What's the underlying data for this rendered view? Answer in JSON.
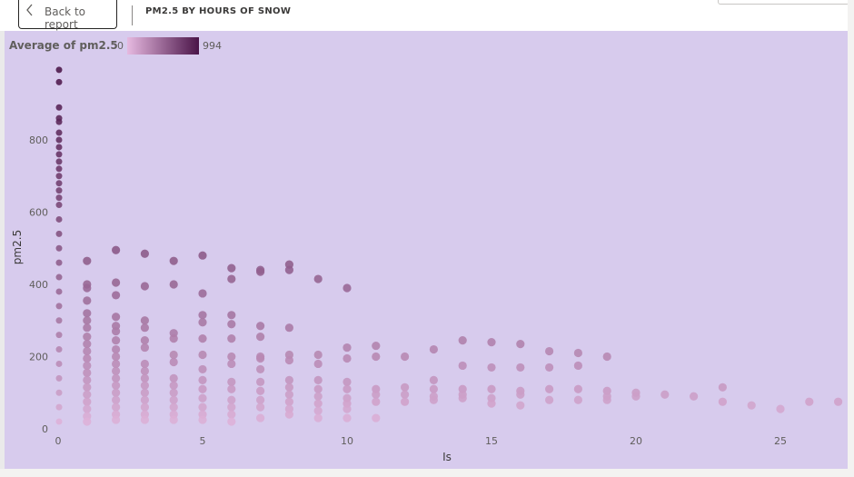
{
  "header": {
    "back_label": "Back to report",
    "title": "PM2.5 BY HOURS OF SNOW"
  },
  "legend": {
    "title": "Average of pm2.5",
    "min": "0",
    "max": "994",
    "color_low": "#e6b9e0",
    "color_high": "#4a1448"
  },
  "chart_data": {
    "type": "scatter",
    "title": "PM2.5 BY HOURS OF SNOW",
    "xlabel": "Is",
    "ylabel": "pm2.5",
    "xlim": [
      0,
      27
    ],
    "ylim": [
      0,
      994
    ],
    "x_ticks": [
      0,
      5,
      10,
      15,
      20,
      25
    ],
    "y_ticks": [
      0,
      200,
      400,
      600,
      800
    ],
    "grid": false,
    "color_by": "Average of pm2.5",
    "color_range": [
      0,
      994
    ],
    "points": [
      {
        "x": 0,
        "y": 994
      },
      {
        "x": 0,
        "y": 960
      },
      {
        "x": 0,
        "y": 890
      },
      {
        "x": 0,
        "y": 860
      },
      {
        "x": 0,
        "y": 850
      },
      {
        "x": 0,
        "y": 820
      },
      {
        "x": 0,
        "y": 800
      },
      {
        "x": 0,
        "y": 780
      },
      {
        "x": 0,
        "y": 760
      },
      {
        "x": 0,
        "y": 740
      },
      {
        "x": 0,
        "y": 720
      },
      {
        "x": 0,
        "y": 700
      },
      {
        "x": 0,
        "y": 680
      },
      {
        "x": 0,
        "y": 660
      },
      {
        "x": 0,
        "y": 640
      },
      {
        "x": 0,
        "y": 620
      },
      {
        "x": 0,
        "y": 580
      },
      {
        "x": 0,
        "y": 540
      },
      {
        "x": 0,
        "y": 500
      },
      {
        "x": 0,
        "y": 460
      },
      {
        "x": 0,
        "y": 420
      },
      {
        "x": 0,
        "y": 380
      },
      {
        "x": 0,
        "y": 340
      },
      {
        "x": 0,
        "y": 300
      },
      {
        "x": 0,
        "y": 260
      },
      {
        "x": 0,
        "y": 220
      },
      {
        "x": 0,
        "y": 180
      },
      {
        "x": 0,
        "y": 140
      },
      {
        "x": 0,
        "y": 100
      },
      {
        "x": 0,
        "y": 60
      },
      {
        "x": 0,
        "y": 20
      },
      {
        "x": 1,
        "y": 465
      },
      {
        "x": 1,
        "y": 400
      },
      {
        "x": 1,
        "y": 390
      },
      {
        "x": 1,
        "y": 355
      },
      {
        "x": 1,
        "y": 320
      },
      {
        "x": 1,
        "y": 300
      },
      {
        "x": 1,
        "y": 280
      },
      {
        "x": 1,
        "y": 255
      },
      {
        "x": 1,
        "y": 235
      },
      {
        "x": 1,
        "y": 215
      },
      {
        "x": 1,
        "y": 195
      },
      {
        "x": 1,
        "y": 175
      },
      {
        "x": 1,
        "y": 155
      },
      {
        "x": 1,
        "y": 135
      },
      {
        "x": 1,
        "y": 115
      },
      {
        "x": 1,
        "y": 95
      },
      {
        "x": 1,
        "y": 75
      },
      {
        "x": 1,
        "y": 55
      },
      {
        "x": 1,
        "y": 35
      },
      {
        "x": 1,
        "y": 20
      },
      {
        "x": 2,
        "y": 495
      },
      {
        "x": 2,
        "y": 405
      },
      {
        "x": 2,
        "y": 370
      },
      {
        "x": 2,
        "y": 310
      },
      {
        "x": 2,
        "y": 285
      },
      {
        "x": 2,
        "y": 270
      },
      {
        "x": 2,
        "y": 245
      },
      {
        "x": 2,
        "y": 220
      },
      {
        "x": 2,
        "y": 200
      },
      {
        "x": 2,
        "y": 180
      },
      {
        "x": 2,
        "y": 160
      },
      {
        "x": 2,
        "y": 140
      },
      {
        "x": 2,
        "y": 120
      },
      {
        "x": 2,
        "y": 100
      },
      {
        "x": 2,
        "y": 80
      },
      {
        "x": 2,
        "y": 60
      },
      {
        "x": 2,
        "y": 40
      },
      {
        "x": 2,
        "y": 25
      },
      {
        "x": 3,
        "y": 485
      },
      {
        "x": 3,
        "y": 395
      },
      {
        "x": 3,
        "y": 300
      },
      {
        "x": 3,
        "y": 280
      },
      {
        "x": 3,
        "y": 245
      },
      {
        "x": 3,
        "y": 225
      },
      {
        "x": 3,
        "y": 180
      },
      {
        "x": 3,
        "y": 160
      },
      {
        "x": 3,
        "y": 140
      },
      {
        "x": 3,
        "y": 120
      },
      {
        "x": 3,
        "y": 100
      },
      {
        "x": 3,
        "y": 80
      },
      {
        "x": 3,
        "y": 60
      },
      {
        "x": 3,
        "y": 40
      },
      {
        "x": 3,
        "y": 25
      },
      {
        "x": 4,
        "y": 465
      },
      {
        "x": 4,
        "y": 400
      },
      {
        "x": 4,
        "y": 265
      },
      {
        "x": 4,
        "y": 250
      },
      {
        "x": 4,
        "y": 205
      },
      {
        "x": 4,
        "y": 185
      },
      {
        "x": 4,
        "y": 140
      },
      {
        "x": 4,
        "y": 120
      },
      {
        "x": 4,
        "y": 100
      },
      {
        "x": 4,
        "y": 80
      },
      {
        "x": 4,
        "y": 60
      },
      {
        "x": 4,
        "y": 40
      },
      {
        "x": 4,
        "y": 25
      },
      {
        "x": 5,
        "y": 480
      },
      {
        "x": 5,
        "y": 375
      },
      {
        "x": 5,
        "y": 315
      },
      {
        "x": 5,
        "y": 295
      },
      {
        "x": 5,
        "y": 250
      },
      {
        "x": 5,
        "y": 205
      },
      {
        "x": 5,
        "y": 165
      },
      {
        "x": 5,
        "y": 135
      },
      {
        "x": 5,
        "y": 110
      },
      {
        "x": 5,
        "y": 85
      },
      {
        "x": 5,
        "y": 60
      },
      {
        "x": 5,
        "y": 40
      },
      {
        "x": 5,
        "y": 25
      },
      {
        "x": 6,
        "y": 445
      },
      {
        "x": 6,
        "y": 415
      },
      {
        "x": 6,
        "y": 315
      },
      {
        "x": 6,
        "y": 290
      },
      {
        "x": 6,
        "y": 250
      },
      {
        "x": 6,
        "y": 200
      },
      {
        "x": 6,
        "y": 180
      },
      {
        "x": 6,
        "y": 130
      },
      {
        "x": 6,
        "y": 110
      },
      {
        "x": 6,
        "y": 80
      },
      {
        "x": 6,
        "y": 60
      },
      {
        "x": 6,
        "y": 40
      },
      {
        "x": 6,
        "y": 20
      },
      {
        "x": 7,
        "y": 440
      },
      {
        "x": 7,
        "y": 435
      },
      {
        "x": 7,
        "y": 285
      },
      {
        "x": 7,
        "y": 255
      },
      {
        "x": 7,
        "y": 200
      },
      {
        "x": 7,
        "y": 195
      },
      {
        "x": 7,
        "y": 165
      },
      {
        "x": 7,
        "y": 130
      },
      {
        "x": 7,
        "y": 105
      },
      {
        "x": 7,
        "y": 80
      },
      {
        "x": 7,
        "y": 60
      },
      {
        "x": 7,
        "y": 30
      },
      {
        "x": 8,
        "y": 455
      },
      {
        "x": 8,
        "y": 440
      },
      {
        "x": 8,
        "y": 280
      },
      {
        "x": 8,
        "y": 205
      },
      {
        "x": 8,
        "y": 190
      },
      {
        "x": 8,
        "y": 135
      },
      {
        "x": 8,
        "y": 115
      },
      {
        "x": 8,
        "y": 95
      },
      {
        "x": 8,
        "y": 75
      },
      {
        "x": 8,
        "y": 55
      },
      {
        "x": 8,
        "y": 40
      },
      {
        "x": 9,
        "y": 415
      },
      {
        "x": 9,
        "y": 205
      },
      {
        "x": 9,
        "y": 180
      },
      {
        "x": 9,
        "y": 135
      },
      {
        "x": 9,
        "y": 110
      },
      {
        "x": 9,
        "y": 90
      },
      {
        "x": 9,
        "y": 70
      },
      {
        "x": 9,
        "y": 50
      },
      {
        "x": 9,
        "y": 30
      },
      {
        "x": 10,
        "y": 390
      },
      {
        "x": 10,
        "y": 225
      },
      {
        "x": 10,
        "y": 195
      },
      {
        "x": 10,
        "y": 130
      },
      {
        "x": 10,
        "y": 110
      },
      {
        "x": 10,
        "y": 85
      },
      {
        "x": 10,
        "y": 70
      },
      {
        "x": 10,
        "y": 55
      },
      {
        "x": 10,
        "y": 30
      },
      {
        "x": 11,
        "y": 230
      },
      {
        "x": 11,
        "y": 200
      },
      {
        "x": 11,
        "y": 110
      },
      {
        "x": 11,
        "y": 95
      },
      {
        "x": 11,
        "y": 75
      },
      {
        "x": 11,
        "y": 30
      },
      {
        "x": 12,
        "y": 200
      },
      {
        "x": 12,
        "y": 115
      },
      {
        "x": 12,
        "y": 95
      },
      {
        "x": 12,
        "y": 75
      },
      {
        "x": 13,
        "y": 220
      },
      {
        "x": 13,
        "y": 135
      },
      {
        "x": 13,
        "y": 110
      },
      {
        "x": 13,
        "y": 90
      },
      {
        "x": 13,
        "y": 80
      },
      {
        "x": 14,
        "y": 245
      },
      {
        "x": 14,
        "y": 175
      },
      {
        "x": 14,
        "y": 110
      },
      {
        "x": 14,
        "y": 95
      },
      {
        "x": 14,
        "y": 85
      },
      {
        "x": 15,
        "y": 240
      },
      {
        "x": 15,
        "y": 170
      },
      {
        "x": 15,
        "y": 110
      },
      {
        "x": 15,
        "y": 85
      },
      {
        "x": 15,
        "y": 70
      },
      {
        "x": 16,
        "y": 235
      },
      {
        "x": 16,
        "y": 170
      },
      {
        "x": 16,
        "y": 105
      },
      {
        "x": 16,
        "y": 95
      },
      {
        "x": 16,
        "y": 65
      },
      {
        "x": 17,
        "y": 215
      },
      {
        "x": 17,
        "y": 170
      },
      {
        "x": 17,
        "y": 110
      },
      {
        "x": 17,
        "y": 80
      },
      {
        "x": 18,
        "y": 210
      },
      {
        "x": 18,
        "y": 175
      },
      {
        "x": 18,
        "y": 110
      },
      {
        "x": 18,
        "y": 80
      },
      {
        "x": 19,
        "y": 200
      },
      {
        "x": 19,
        "y": 105
      },
      {
        "x": 19,
        "y": 90
      },
      {
        "x": 19,
        "y": 80
      },
      {
        "x": 20,
        "y": 100
      },
      {
        "x": 20,
        "y": 90
      },
      {
        "x": 21,
        "y": 95
      },
      {
        "x": 22,
        "y": 90
      },
      {
        "x": 23,
        "y": 115
      },
      {
        "x": 23,
        "y": 75
      },
      {
        "x": 24,
        "y": 65
      },
      {
        "x": 25,
        "y": 55
      },
      {
        "x": 26,
        "y": 75
      },
      {
        "x": 27,
        "y": 75
      }
    ]
  }
}
